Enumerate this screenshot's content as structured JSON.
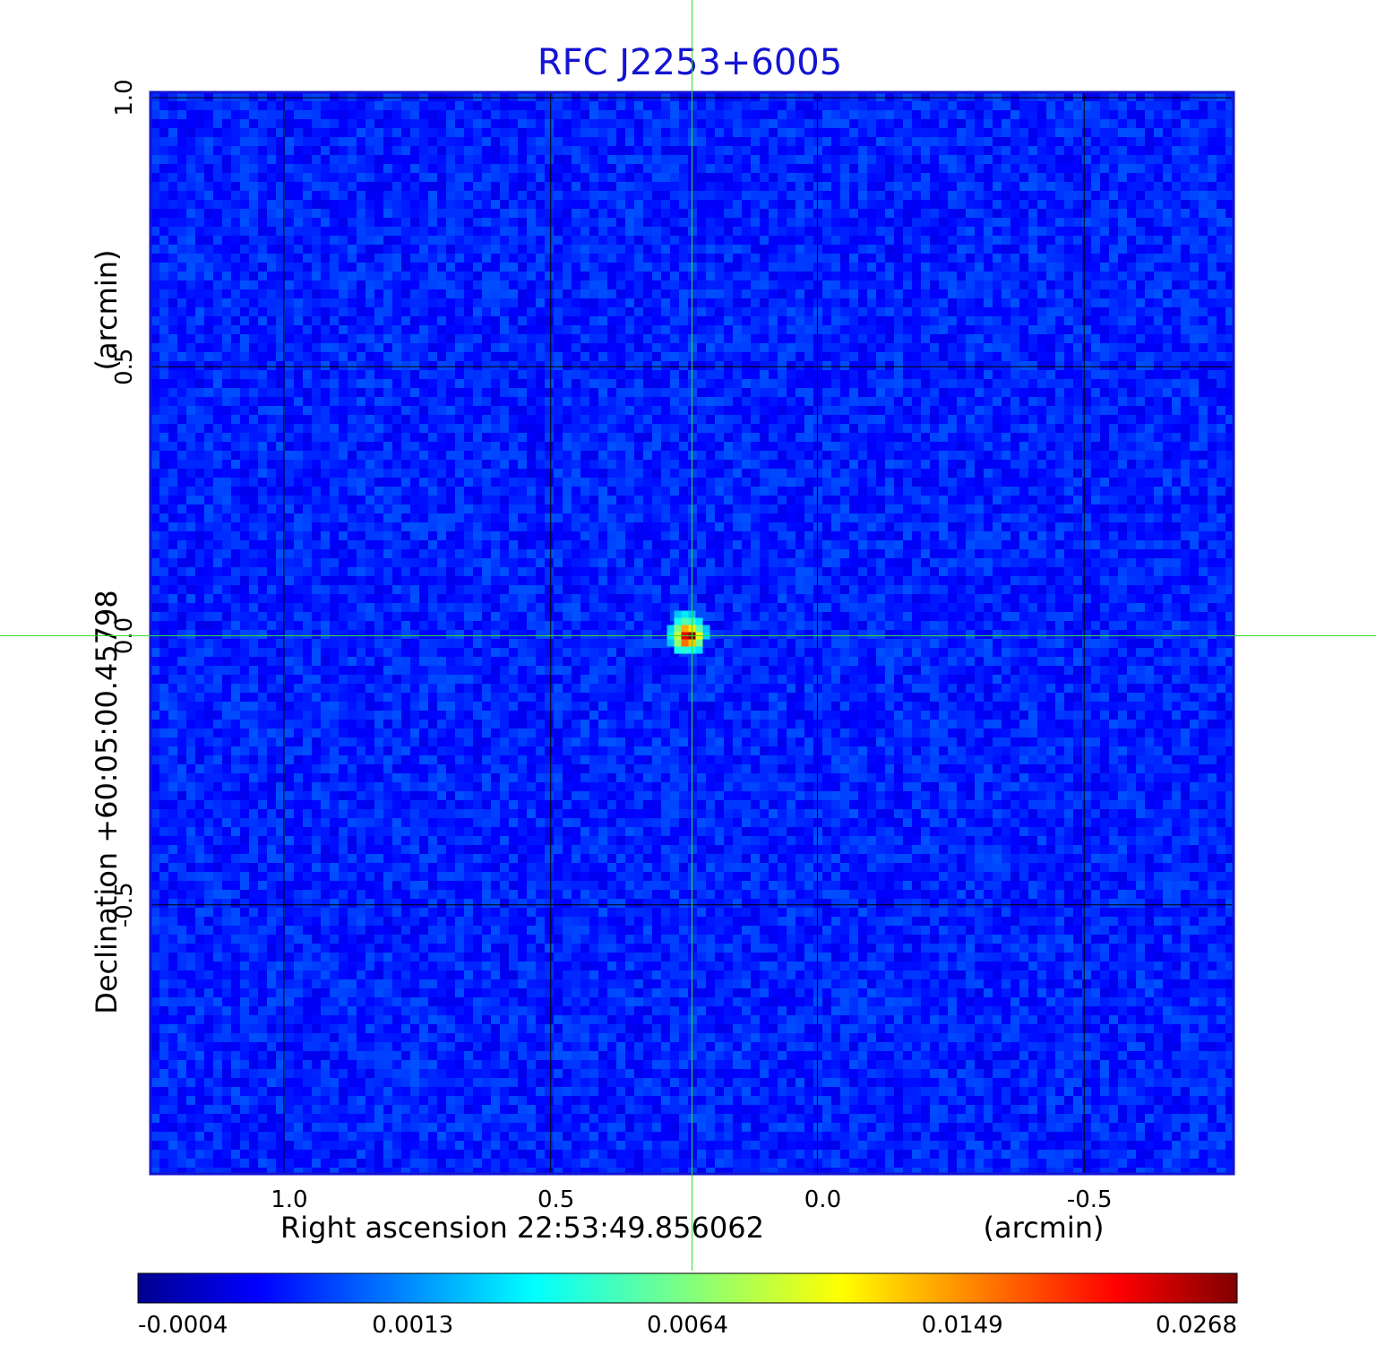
{
  "chart_data": {
    "type": "heatmap",
    "title": "RFC J2253+6005",
    "xlabel": "Right ascension  22:53:49.856062",
    "xunit": "(arcmin)",
    "ylabel": "Declination  +60:05:00.45798",
    "yunit": "(arcmin)",
    "x_ticks": [
      1.0,
      0.5,
      0.0,
      -0.5
    ],
    "x_tick_labels": [
      "1.0",
      "0.5",
      "0.0",
      "-0.5"
    ],
    "y_ticks": [
      1.0,
      0.5,
      0.0,
      -0.5
    ],
    "y_tick_labels": [
      "1.0",
      "0.5",
      "0.0",
      "-0.5"
    ],
    "xlim": [
      1.25,
      -0.78
    ],
    "ylim": [
      -1.0,
      1.01
    ],
    "grid": true,
    "crosshair": {
      "x": 0.235,
      "y": 0.0
    },
    "peak": {
      "x": 0.235,
      "y": 0.0,
      "value": 0.0268
    },
    "background_level": -0.0002,
    "colorbar": {
      "colormap": "jet",
      "tick_labels": [
        "-0.0004",
        "0.0013",
        "0.0064",
        "0.0149",
        "0.0268"
      ],
      "colors": [
        "#00008f",
        "#0000ff",
        "#00ffff",
        "#ffff00",
        "#ff0000",
        "#800000"
      ]
    }
  }
}
